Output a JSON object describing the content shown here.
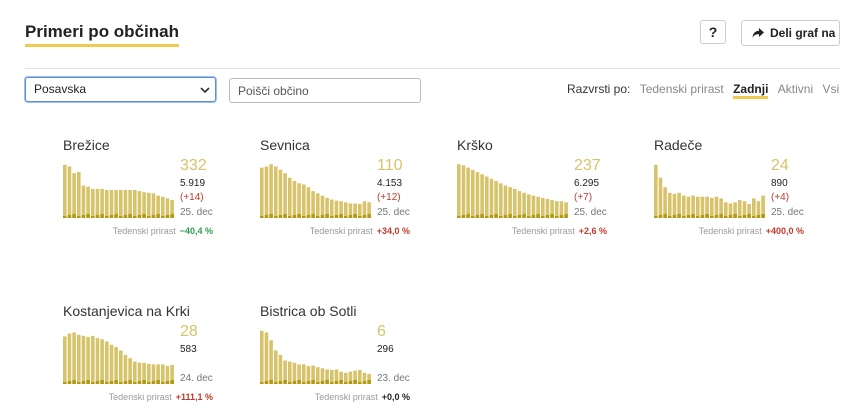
{
  "header": {
    "title": "Primeri po občinah",
    "help_label": "?",
    "share_label": "Deli graf na"
  },
  "filters": {
    "region_value": "Posavska",
    "search_placeholder": "Poišči občino",
    "sort_label": "Razvrsti po:",
    "sort_options": [
      "Tedenski prirast",
      "Zadnji",
      "Aktivni",
      "Vsi"
    ],
    "active_sort": "Zadnji"
  },
  "prirast_label": "Tedenski prirast",
  "colors": {
    "bar": "#d7c36a",
    "bar_dark": "#b39a12",
    "accent": "#f2c94c",
    "up": "#c0392b",
    "down": "#2e9e4e"
  },
  "chart_data": [
    {
      "type": "bar",
      "name": "Brežice",
      "active": 332,
      "total": "5.919",
      "delta": "(+14)",
      "date": "25. dec",
      "weekly_change": "−40,4 %",
      "trend": "neg",
      "values": [
        95,
        92,
        80,
        82,
        58,
        56,
        52,
        52,
        52,
        50,
        50,
        50,
        50,
        50,
        50,
        50,
        48,
        46,
        45,
        44,
        40,
        38,
        35,
        32
      ]
    },
    {
      "type": "bar",
      "name": "Sevnica",
      "active": 110,
      "total": "4.153",
      "delta": "(+12)",
      "date": "25. dec",
      "weekly_change": "+34,0 %",
      "trend": "pos",
      "values": [
        90,
        92,
        96,
        92,
        86,
        80,
        72,
        66,
        62,
        60,
        55,
        48,
        44,
        40,
        36,
        33,
        31,
        30,
        28,
        26,
        26,
        25,
        30,
        28
      ]
    },
    {
      "type": "bar",
      "name": "Krško",
      "active": 237,
      "total": "6.295",
      "delta": "(+7)",
      "date": "25. dec",
      "weekly_change": "+2,6 %",
      "trend": "pos",
      "values": [
        96,
        94,
        90,
        86,
        82,
        78,
        74,
        70,
        66,
        62,
        58,
        55,
        52,
        48,
        45,
        42,
        40,
        38,
        36,
        34,
        32,
        30,
        30,
        28
      ]
    },
    {
      "type": "bar",
      "name": "Radeče",
      "active": 24,
      "total": "890",
      "delta": "(+4)",
      "date": "25. dec",
      "weekly_change": "+400,0 %",
      "trend": "pos",
      "values": [
        95,
        72,
        55,
        45,
        43,
        45,
        40,
        38,
        40,
        38,
        38,
        38,
        36,
        38,
        35,
        28,
        26,
        28,
        32,
        30,
        25,
        35,
        30,
        40
      ]
    },
    {
      "type": "bar",
      "name": "Kostanjevica na Krki",
      "active": 28,
      "total": "583",
      "delta": "",
      "date": "24. dec",
      "weekly_change": "+111,1 %",
      "trend": "pos",
      "values": [
        85,
        90,
        92,
        88,
        86,
        84,
        86,
        82,
        80,
        76,
        70,
        66,
        60,
        52,
        46,
        40,
        38,
        38,
        36,
        35,
        35,
        35,
        32,
        34
      ]
    },
    {
      "type": "bar",
      "name": "Bistrica ob Sotli",
      "active": 6,
      "total": "296",
      "delta": "",
      "date": "23. dec",
      "weekly_change": "+0,0 %",
      "trend": "zero",
      "values": [
        95,
        92,
        78,
        60,
        52,
        42,
        40,
        38,
        35,
        35,
        32,
        33,
        30,
        28,
        26,
        25,
        26,
        22,
        20,
        22,
        24,
        25,
        20,
        18
      ]
    }
  ]
}
